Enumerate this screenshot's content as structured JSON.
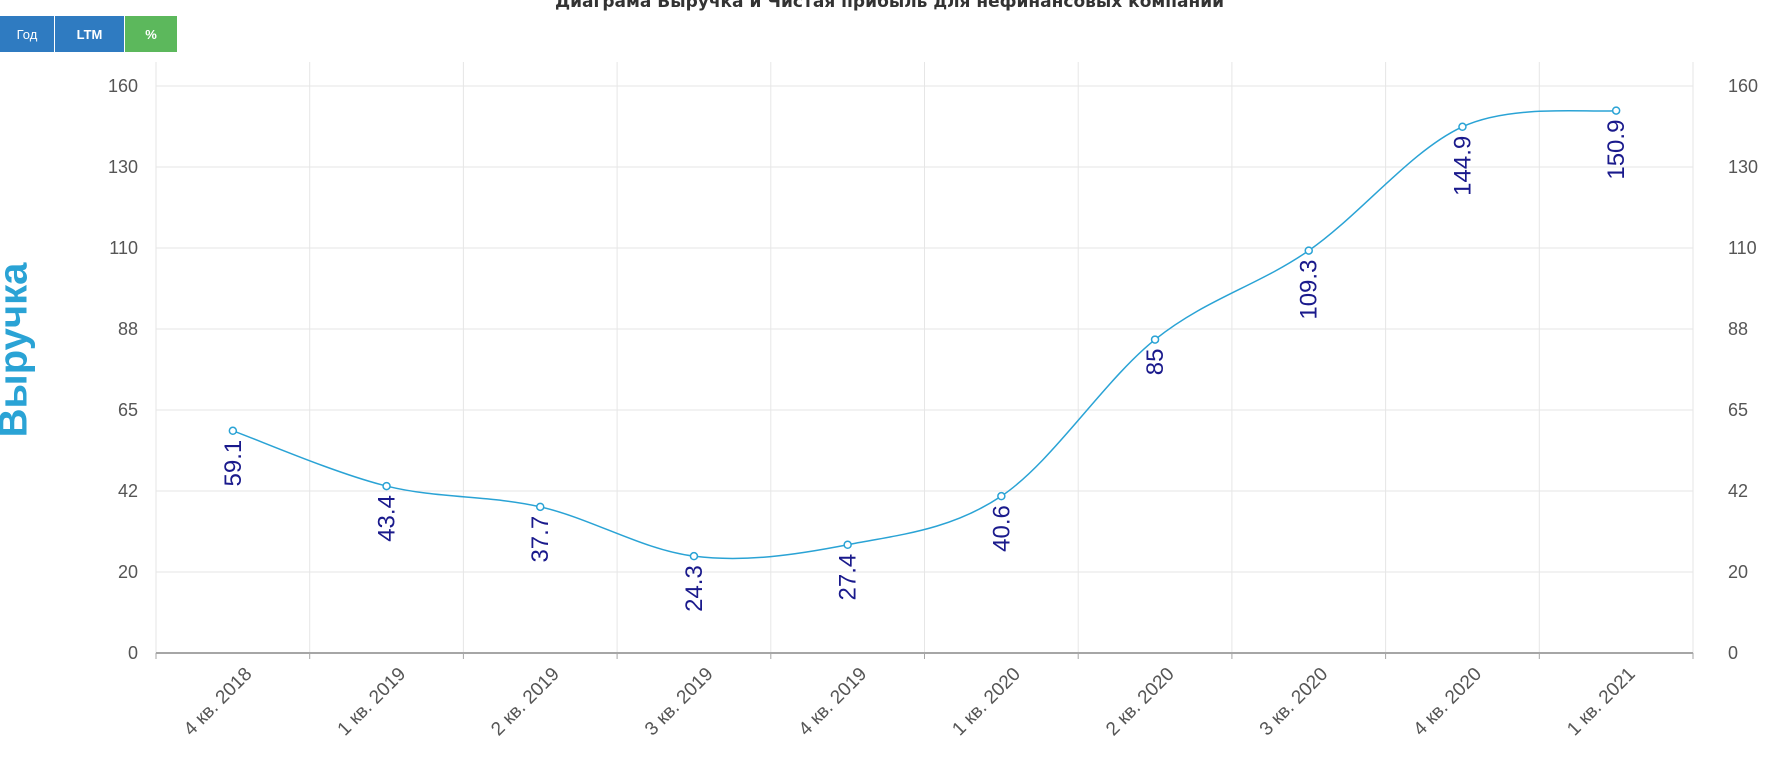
{
  "title": "Диаграма Выручка и Чистая прибыль для нефинансовых компаний",
  "buttons": {
    "year": "Год",
    "ltm": "LTM",
    "percent": "%"
  },
  "colors": {
    "line": "#2aa3d5",
    "label": "#1a1a8c",
    "button_blue": "#2f7bc1",
    "button_green": "#5cb85c",
    "grid": "#e6e6e6"
  },
  "chart_data": {
    "type": "line",
    "title": "Диаграма Выручка и Чистая прибыль для нефинансовых компаний",
    "ylabel": "Выручка",
    "xlabel": "",
    "categories": [
      "4 кв. 2018",
      "1 кв. 2019",
      "2 кв. 2019",
      "3 кв. 2019",
      "4 кв. 2019",
      "1 кв. 2020",
      "2 кв. 2020",
      "3 кв. 2020",
      "4 кв. 2020",
      "1 кв. 2021"
    ],
    "series": [
      {
        "values": [
          59.1,
          43.4,
          37.7,
          24.3,
          27.4,
          40.6,
          85,
          109.3,
          144.9,
          150.9
        ]
      }
    ],
    "y_ticks": [
      0,
      20,
      42,
      65,
      88,
      110,
      130,
      160
    ],
    "ylim": [
      0,
      160
    ],
    "grid": true,
    "secondary_axis_right": true
  }
}
